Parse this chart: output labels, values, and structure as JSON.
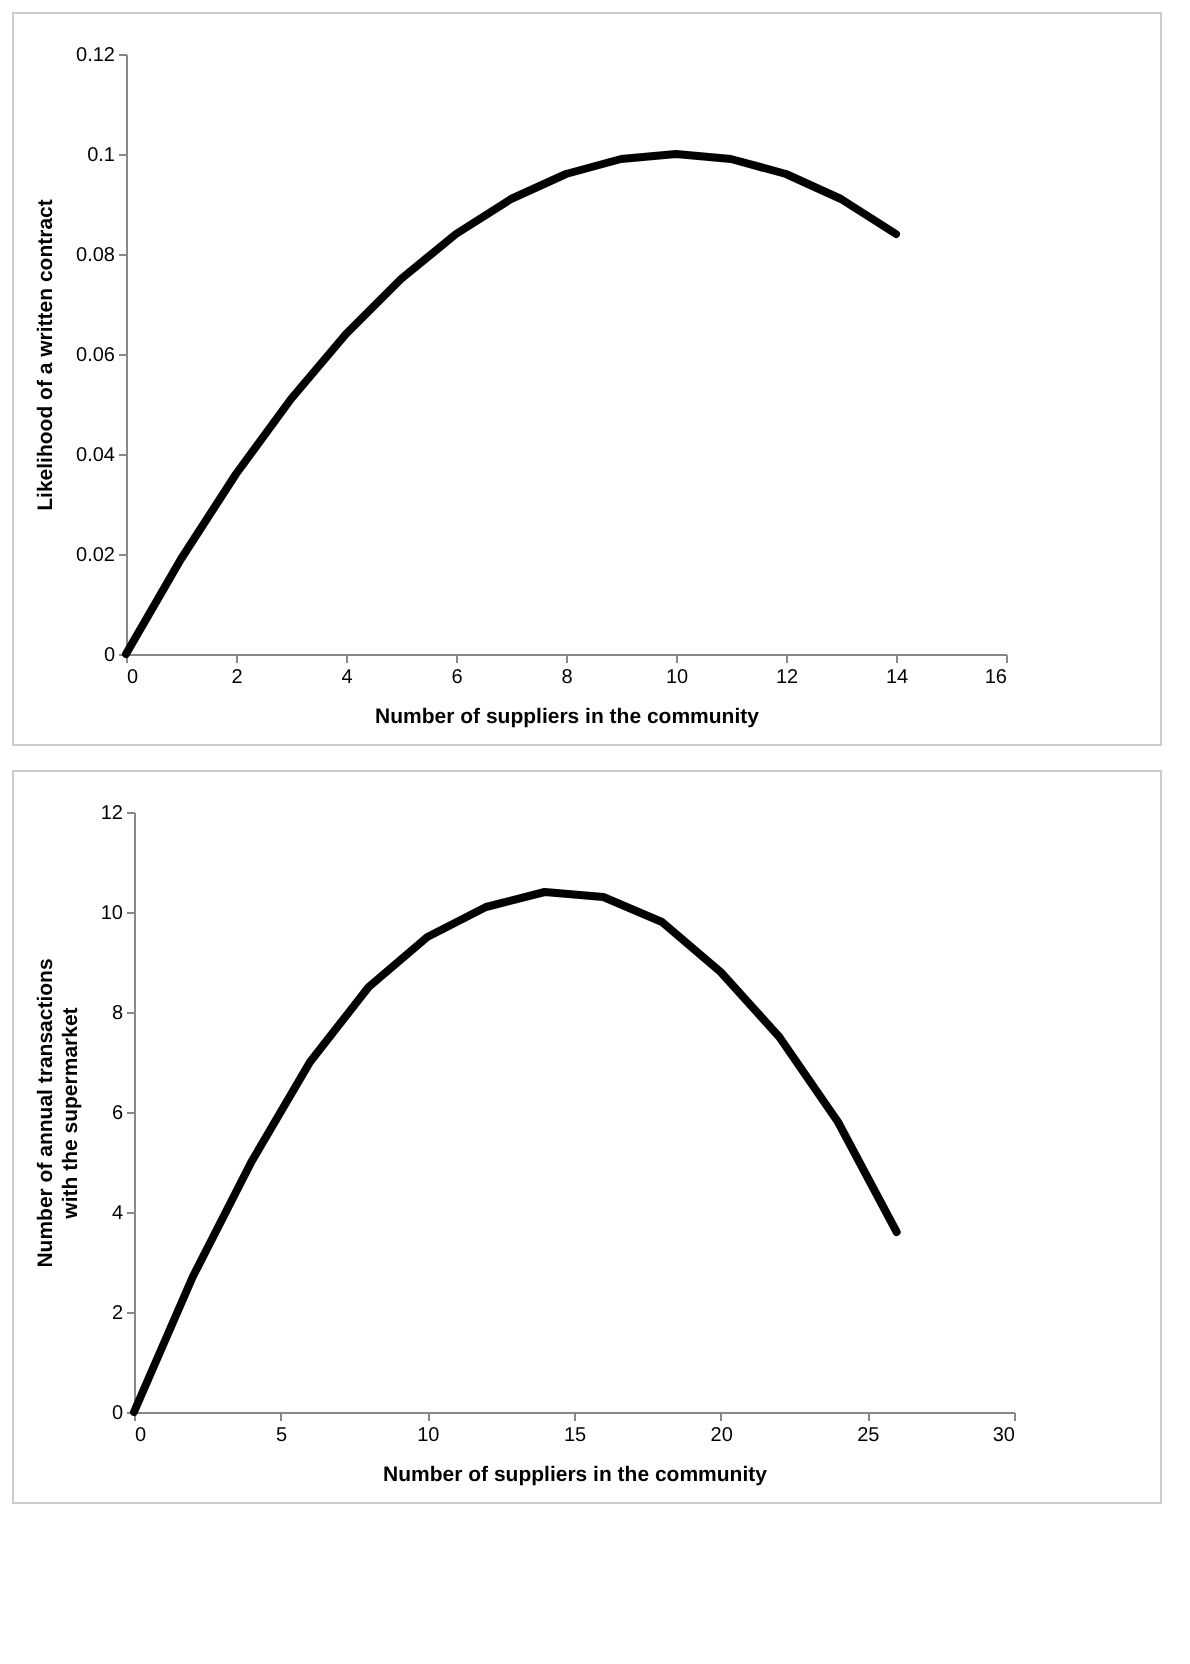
{
  "chart_data": [
    {
      "type": "line",
      "xlabel": "Number of suppliers in the community",
      "ylabel": "Likelihood of a written contract",
      "x": [
        0,
        1,
        2,
        3,
        4,
        5,
        6,
        7,
        8,
        9,
        10,
        11,
        12,
        13,
        14
      ],
      "series": [
        {
          "color": "#000000",
          "values": [
            0,
            0.019,
            0.036,
            0.051,
            0.064,
            0.075,
            0.084,
            0.091,
            0.096,
            0.099,
            0.1,
            0.099,
            0.096,
            0.091,
            0.084
          ]
        }
      ],
      "xlim": [
        0,
        16
      ],
      "xticks": [
        0,
        2,
        4,
        6,
        8,
        10,
        12,
        14,
        16
      ],
      "ylim": [
        0,
        0.12
      ],
      "yticks": [
        0,
        0.02,
        0.04,
        0.06,
        0.08,
        0.1,
        0.12
      ]
    },
    {
      "type": "line",
      "xlabel": "Number of suppliers in the community",
      "ylabel": "Number of annual transactions with the supermarket",
      "x": [
        0,
        2,
        4,
        6,
        8,
        10,
        12,
        14,
        16,
        18,
        20,
        22,
        24,
        26
      ],
      "series": [
        {
          "color": "#000000",
          "values": [
            0,
            2.7,
            5.0,
            7.0,
            8.5,
            9.5,
            10.1,
            10.4,
            10.3,
            9.8,
            8.8,
            7.5,
            5.8,
            3.6
          ]
        }
      ],
      "xlim": [
        0,
        30
      ],
      "xticks": [
        0,
        5,
        10,
        15,
        20,
        25,
        30
      ],
      "ylim": [
        0,
        12
      ],
      "yticks": [
        0,
        2,
        4,
        6,
        8,
        10,
        12
      ]
    }
  ]
}
